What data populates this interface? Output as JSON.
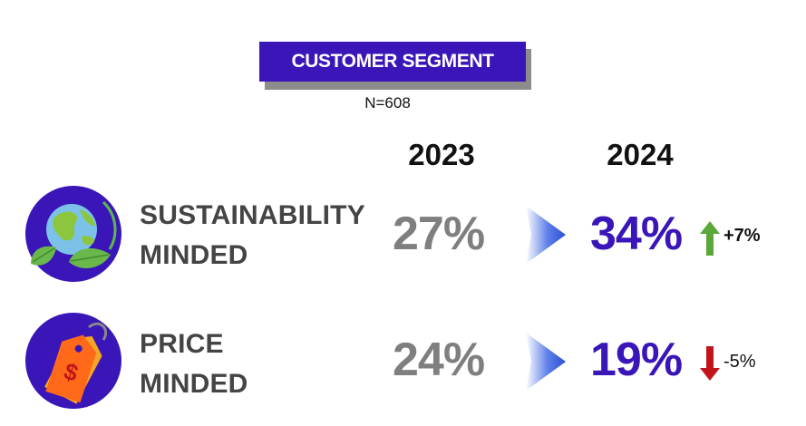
{
  "header": {
    "title": "CUSTOMER SEGMENT",
    "sample": "N=608"
  },
  "years": {
    "previous": "2023",
    "current": "2024"
  },
  "segments": [
    {
      "label_line1": "SUSTAINABILITY",
      "label_line2": "MINDED",
      "icon": "globe-leaves-icon",
      "previous_value": "27%",
      "current_value": "34%",
      "change": "+7%",
      "direction": "up"
    },
    {
      "label_line1": "PRICE",
      "label_line2": "MINDED",
      "icon": "price-tag-icon",
      "previous_value": "24%",
      "current_value": "19%",
      "change": "-5%",
      "direction": "down"
    }
  ],
  "colors": {
    "accent": "#3a16b8",
    "muted_value": "#7f7f7f",
    "up": "#5aa83a",
    "down": "#c0161b"
  }
}
